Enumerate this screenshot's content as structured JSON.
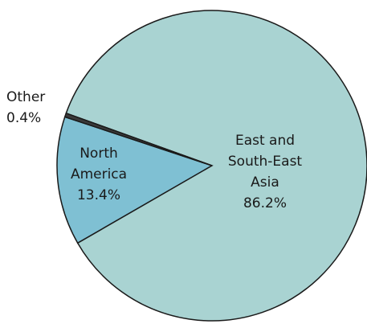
{
  "chart_data": {
    "type": "pie",
    "categories": [
      "North America",
      "East and South-East Asia",
      "Other"
    ],
    "values": [
      13.4,
      86.2,
      0.4
    ],
    "value_labels": [
      "13.4%",
      "86.2%",
      "0.4%"
    ],
    "colors": [
      "#7fc0d3",
      "#a9d3d2",
      "#3a3a3a"
    ]
  }
}
